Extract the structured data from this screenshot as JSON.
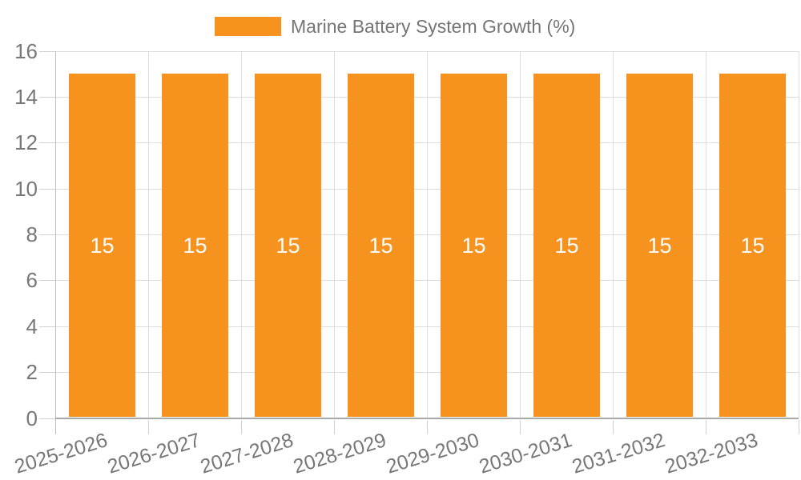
{
  "legend": {
    "label": "Marine Battery System Growth (%)"
  },
  "chart_data": {
    "type": "bar",
    "title": "",
    "series_name": "Marine Battery System Growth (%)",
    "categories": [
      "2025-2026",
      "2026-2027",
      "2027-2028",
      "2028-2029",
      "2029-2030",
      "2030-2031",
      "2031-2032",
      "2032-2033"
    ],
    "values": [
      15,
      15,
      15,
      15,
      15,
      15,
      15,
      15
    ],
    "bar_labels": [
      "15",
      "15",
      "15",
      "15",
      "15",
      "15",
      "15",
      "15"
    ],
    "xlabel": "",
    "ylabel": "",
    "ylim": [
      0,
      16
    ],
    "yticks": [
      0,
      2,
      4,
      6,
      8,
      10,
      12,
      14,
      16
    ],
    "grid": true,
    "legend_position": "top-center",
    "colors": {
      "bar": "#f6921e",
      "bar_label": "#ffffff",
      "axis_text": "#777777",
      "gridline": "#dddddd",
      "axis_line": "#a9a9a9"
    }
  }
}
